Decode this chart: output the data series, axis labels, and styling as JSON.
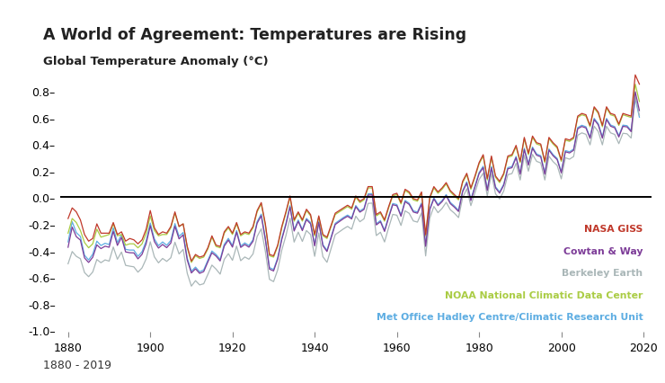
{
  "title": "A World of Agreement: Temperatures are Rising",
  "ylabel": "Global Temperature Anomaly (°C)",
  "xlabel_bottom": "1880 - 2019",
  "ylim": [
    -1.05,
    0.97
  ],
  "xlim": [
    1878,
    2022
  ],
  "yticks": [
    -1.0,
    -0.8,
    -0.6,
    -0.4,
    -0.2,
    0.0,
    0.2,
    0.4,
    0.6,
    0.8
  ],
  "xticks": [
    1880,
    1900,
    1920,
    1940,
    1960,
    1980,
    2000,
    2020
  ],
  "series": {
    "NASA GISS": {
      "color": "#C0392B",
      "lw": 0.9,
      "zorder": 5
    },
    "Cowtan & Way": {
      "color": "#7D3C98",
      "lw": 0.9,
      "zorder": 4
    },
    "Berkeley Earth": {
      "color": "#AAB7B8",
      "lw": 0.9,
      "zorder": 3
    },
    "NOAA National Climatic Data Center": {
      "color": "#AACC44",
      "lw": 0.9,
      "zorder": 2
    },
    "Met Office Hadley Centre/Climatic Research Unit": {
      "color": "#5DADE2",
      "lw": 0.9,
      "zorder": 1
    }
  },
  "legend_labels": [
    "NASA GISS",
    "Cowtan & Way",
    "Berkeley Earth",
    "NOAA National Climatic Data Center",
    "Met Office Hadley Centre/Climatic Research Unit"
  ],
  "legend_colors": [
    "#C0392B",
    "#7D3C98",
    "#AAB7B8",
    "#AACC44",
    "#5DADE2"
  ],
  "background_color": "#FFFFFF",
  "title_fontsize": 12.5,
  "ylabel_fontsize": 9.5,
  "tick_fontsize": 9,
  "legend_fontsize": 7.8
}
